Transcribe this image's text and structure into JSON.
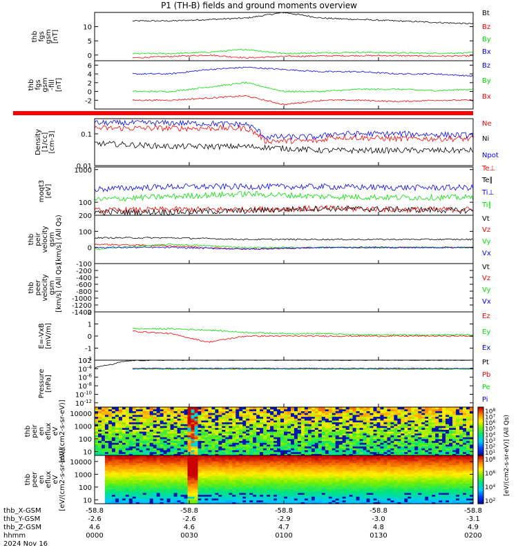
{
  "title": "P1 (TH-B) fields and ground moments overview",
  "footer": {
    "row_labels": [
      "thb_X-GSM",
      "thb_Y-GSM",
      "thb_Z-GSM",
      "hhmm",
      "2024 Nov 16"
    ],
    "columns": [
      {
        "x": "-58.8",
        "y": "-2.6",
        "z": "4.6",
        "hhmm": "0000"
      },
      {
        "x": "-58.8",
        "y": "-2.6",
        "z": "4.6",
        "hhmm": "0030"
      },
      {
        "x": "-58.8",
        "y": "-2.9",
        "z": "4.7",
        "hhmm": "0100"
      },
      {
        "x": "-58.8",
        "y": "-3.0",
        "z": "4.8",
        "hhmm": "0130"
      },
      {
        "x": "-58.8",
        "y": "-3.1",
        "z": "4.9",
        "hhmm": "0200"
      }
    ]
  },
  "colorbar": {
    "label": "[eV/(cm2-s-sr-eV)] (All Qs)",
    "ticks_top": [
      "10^8",
      "10^7",
      "10^6",
      "10^5",
      "10^4",
      "10^3",
      "10^2",
      "10^1"
    ],
    "ticks_bottom": [
      "10^8",
      "10^6",
      "10^4",
      "10^2"
    ]
  },
  "colors": {
    "black": "#000000",
    "red": "#ff0000",
    "green": "#00e000",
    "blue": "#0000ff",
    "orange": "#ff8c00"
  },
  "chart_data": [
    {
      "type": "line",
      "ylabel": [
        "thb",
        "fgs",
        "gsm",
        "[nT]"
      ],
      "ylim": [
        -2,
        15
      ],
      "ticks": [
        0,
        5,
        10
      ],
      "series": [
        {
          "name": "Bt",
          "color": "black",
          "x": [
            0.1,
            0.2,
            0.3,
            0.4,
            0.5,
            0.6,
            0.7,
            0.8,
            0.9,
            1.0
          ],
          "y": [
            12,
            12,
            12.5,
            13,
            15,
            13,
            12.5,
            12,
            11.5,
            11
          ]
        },
        {
          "name": "Bz",
          "color": "red",
          "x": [
            0.1,
            0.2,
            0.3,
            0.4,
            0.5,
            0.6,
            0.7,
            0.8,
            0.9,
            1.0
          ],
          "y": [
            -1,
            -0.5,
            0,
            -1,
            -0.5,
            -0.3,
            -0.2,
            -0.2,
            -0.4,
            -0.3
          ]
        },
        {
          "name": "By",
          "color": "green",
          "x": [
            0.1,
            0.2,
            0.3,
            0.4,
            0.5,
            0.6,
            0.7,
            0.8,
            0.9,
            1.0
          ],
          "y": [
            0.5,
            0.5,
            1,
            2,
            0.5,
            0.8,
            1,
            0.8,
            0.6,
            0.8
          ]
        },
        {
          "name": "Bx",
          "color": "blue",
          "x": [],
          "y": []
        }
      ]
    },
    {
      "type": "line",
      "ylabel": [
        "thb",
        "fgs",
        "gsm",
        "-fill",
        "[nT]"
      ],
      "ylim": [
        -4,
        7
      ],
      "ticks": [
        -2,
        0,
        2,
        4,
        6
      ],
      "series": [
        {
          "name": "Bz",
          "color": "blue",
          "x": [
            0.1,
            0.2,
            0.3,
            0.4,
            0.5,
            0.6,
            0.7,
            0.8,
            0.9,
            1.0
          ],
          "y": [
            4,
            4,
            5,
            5.5,
            5,
            4.5,
            4.5,
            4,
            4,
            3.5
          ]
        },
        {
          "name": "By",
          "color": "green",
          "x": [
            0.1,
            0.2,
            0.3,
            0.4,
            0.5,
            0.6,
            0.7,
            0.8,
            0.9,
            1.0
          ],
          "y": [
            0,
            0,
            1,
            2,
            0,
            0,
            0.5,
            0.5,
            0.2,
            0.5
          ]
        },
        {
          "name": "Bx",
          "color": "red",
          "x": [
            0.1,
            0.2,
            0.3,
            0.4,
            0.5,
            0.6,
            0.7,
            0.8,
            0.9,
            1.0
          ],
          "y": [
            -2,
            -2,
            -1.5,
            -1,
            -3,
            -2,
            -2,
            -2.3,
            -2,
            -2
          ]
        }
      ]
    },
    {
      "type": "line",
      "ylabel": [
        "Density",
        "[1/cc]",
        "[cm-3]"
      ],
      "scale": "log",
      "ylim": [
        0.01,
        0.3
      ],
      "ticks": [
        0.01,
        0.1
      ],
      "series": [
        {
          "name": "Ne",
          "color": "red",
          "x": [
            0.0,
            0.2,
            0.4,
            0.45,
            0.6,
            0.62,
            0.8,
            1.0
          ],
          "y": [
            0.15,
            0.15,
            0.15,
            0.06,
            0.06,
            0.08,
            0.07,
            0.07
          ]
        },
        {
          "name": "Ni",
          "color": "black",
          "x": [
            0.0,
            0.2,
            0.4,
            0.6,
            0.8,
            1.0
          ],
          "y": [
            0.05,
            0.04,
            0.04,
            0.03,
            0.03,
            0.03
          ]
        },
        {
          "name": "Npot",
          "color": "blue",
          "x": [
            0.0,
            0.2,
            0.4,
            0.45,
            0.6,
            0.62,
            0.8,
            1.0
          ],
          "y": [
            0.22,
            0.22,
            0.2,
            0.08,
            0.08,
            0.1,
            0.1,
            0.09
          ]
        }
      ]
    },
    {
      "type": "line",
      "ylabel": [
        "moqt3",
        "[eV]"
      ],
      "scale": "log",
      "ylim": [
        40,
        1200
      ],
      "ticks": [
        100,
        1000
      ],
      "series": [
        {
          "name": "Te⊥",
          "color": "red",
          "x": [
            0.0,
            0.2,
            0.4,
            0.6,
            0.8,
            1.0
          ],
          "y": [
            55,
            60,
            60,
            65,
            60,
            60
          ]
        },
        {
          "name": "Te∥",
          "color": "black",
          "x": [
            0.0,
            0.2,
            0.4,
            0.6,
            0.8,
            1.0
          ],
          "y": [
            50,
            50,
            55,
            65,
            60,
            55
          ]
        },
        {
          "name": "Ti⊥",
          "color": "blue",
          "x": [
            0.0,
            0.2,
            0.4,
            0.6,
            0.8,
            1.0
          ],
          "y": [
            250,
            300,
            300,
            300,
            280,
            280
          ]
        },
        {
          "name": "Ti∥",
          "color": "green",
          "x": [
            0.0,
            0.2,
            0.4,
            0.6,
            0.8,
            1.0
          ],
          "y": [
            120,
            150,
            180,
            150,
            140,
            140
          ]
        }
      ]
    },
    {
      "type": "line",
      "ylabel": [
        "thb",
        "peir",
        "velocity",
        "gsm",
        "[km/s] (All Qs)"
      ],
      "ylim": [
        -100,
        200
      ],
      "ticks": [
        -100,
        0,
        100,
        200
      ],
      "series": [
        {
          "name": "Vt",
          "color": "black",
          "x": [
            0.0,
            0.2,
            0.4,
            0.6,
            0.8,
            1.0
          ],
          "y": [
            60,
            60,
            50,
            50,
            50,
            50
          ]
        },
        {
          "name": "Vz",
          "color": "red",
          "x": [
            0.0,
            0.2,
            0.4,
            0.6,
            0.8,
            1.0
          ],
          "y": [
            20,
            10,
            -10,
            0,
            0,
            0
          ]
        },
        {
          "name": "Vy",
          "color": "green",
          "x": [
            0.0,
            0.2,
            0.4,
            0.6,
            0.8,
            1.0
          ],
          "y": [
            -10,
            20,
            0,
            0,
            0,
            0
          ]
        },
        {
          "name": "Vx",
          "color": "blue",
          "x": [
            0.0,
            0.2,
            0.4,
            0.6,
            0.8,
            1.0
          ],
          "y": [
            0,
            0,
            -10,
            0,
            0,
            0
          ]
        }
      ]
    },
    {
      "type": "line",
      "ylabel": [
        "thb",
        "peer",
        "velocity",
        "gsm",
        "[km/s] (All Qs)"
      ],
      "ylim": [
        -1400,
        0
      ],
      "ticks": [
        -1400,
        -1200,
        -1000,
        -800,
        -600,
        -400,
        -200
      ],
      "series": [
        {
          "name": "Vt",
          "color": "black",
          "x": [],
          "y": []
        },
        {
          "name": "Vz",
          "color": "red",
          "x": [],
          "y": []
        },
        {
          "name": "Vy",
          "color": "green",
          "x": [],
          "y": []
        },
        {
          "name": "Vx",
          "color": "blue",
          "x": [],
          "y": []
        }
      ]
    },
    {
      "type": "line",
      "ylabel": [
        "E=-VxB",
        "[mV/m]"
      ],
      "ylim": [
        -2,
        2
      ],
      "ticks": [
        -2,
        -1,
        0,
        1,
        2
      ],
      "series": [
        {
          "name": "Ez",
          "color": "red",
          "x": [
            0.1,
            0.2,
            0.3,
            0.4,
            0.5,
            0.6,
            0.7,
            0.8,
            0.9,
            1.0
          ],
          "y": [
            0.4,
            0.2,
            -0.5,
            0,
            0,
            0,
            0,
            0,
            0,
            0
          ]
        },
        {
          "name": "Ey",
          "color": "green",
          "x": [
            0.1,
            0.2,
            0.3,
            0.4,
            0.5,
            0.6,
            0.7,
            0.8,
            0.9,
            1.0
          ],
          "y": [
            0.6,
            0.6,
            0.5,
            0.3,
            0.2,
            0.2,
            0.1,
            0.1,
            0.1,
            0.1
          ]
        },
        {
          "name": "Ex",
          "color": "blue",
          "x": [],
          "y": []
        }
      ]
    },
    {
      "type": "line",
      "ylabel": [
        "Pressure",
        "[nPa]"
      ],
      "scale": "log",
      "ylim": [
        1e-13,
        0.01
      ],
      "ticks": [
        "10^-2",
        "10^-4",
        "10^-6",
        "10^-8",
        "10^-10",
        "10^-12"
      ],
      "series": [
        {
          "name": "Pt",
          "color": "black",
          "x": [
            0.0,
            0.05,
            0.1,
            0.2,
            0.5,
            1.0
          ],
          "y": [
            0.0001,
            0.001,
            0.008,
            0.01,
            0.01,
            0.01
          ]
        },
        {
          "name": "Pb",
          "color": "red",
          "x": [
            0.1,
            0.5,
            1.0
          ],
          "y": [
            0.0001,
            0.0001,
            0.0001
          ]
        },
        {
          "name": "Pe",
          "color": "green",
          "x": [
            0.1,
            0.5,
            1.0
          ],
          "y": [
            8e-05,
            8e-05,
            8e-05
          ]
        },
        {
          "name": "Pi",
          "color": "blue",
          "x": [
            0.1,
            0.5,
            1.0
          ],
          "y": [
            0.00012,
            0.00012,
            0.00012
          ]
        }
      ]
    },
    {
      "type": "heatmap",
      "ylabel": [
        "thb",
        "peir",
        "en",
        "eflux",
        "eV",
        "[eV/(cm2-s-sr-eV)]"
      ],
      "scale": "log",
      "ylim": [
        5,
        30000
      ],
      "ticks": [
        10,
        100,
        1000,
        10000
      ]
    },
    {
      "type": "heatmap",
      "ylabel": [
        "thb",
        "peer",
        "en",
        "eflux",
        "eV",
        "[eV/(cm2-s-sr-eV)]"
      ],
      "scale": "log",
      "ylim": [
        5,
        30000
      ],
      "ticks": [
        10,
        100,
        1000,
        10000
      ]
    }
  ]
}
